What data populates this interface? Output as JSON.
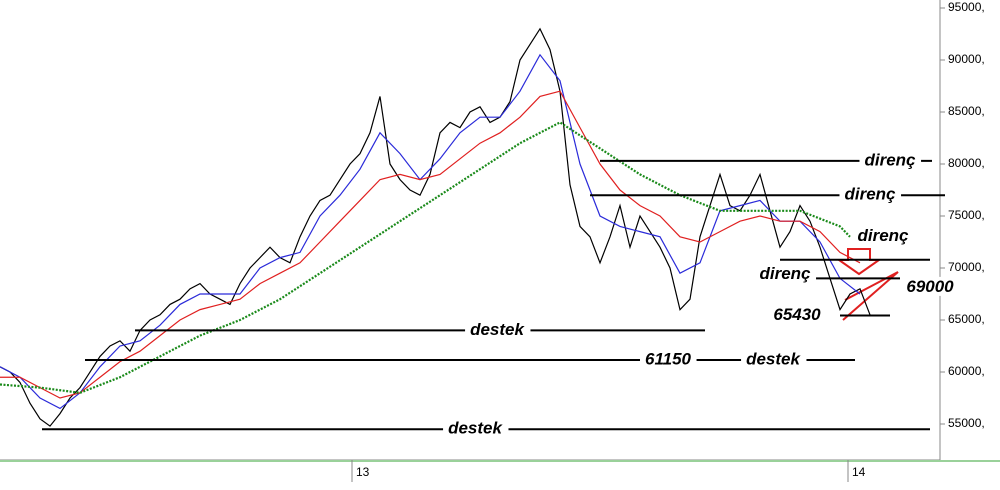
{
  "chart_data": {
    "type": "line",
    "xlim": [
      0,
      94
    ],
    "ylim": [
      51540,
      95770
    ],
    "xticks": [
      {
        "value": 35.2,
        "label": "13"
      },
      {
        "value": 84.8,
        "label": "14"
      }
    ],
    "yticks": [
      {
        "value": 95000,
        "label": "95000,"
      },
      {
        "value": 90000,
        "label": "90000,"
      },
      {
        "value": 85000,
        "label": "85000,"
      },
      {
        "value": 80000,
        "label": "80000,"
      },
      {
        "value": 75000,
        "label": "75000,"
      },
      {
        "value": 70000,
        "label": "70000,"
      },
      {
        "value": 65000,
        "label": "65000,"
      },
      {
        "value": 60000,
        "label": "60000,"
      },
      {
        "value": 55000,
        "label": "55000,"
      }
    ],
    "series": [
      {
        "color": "#000000",
        "dotted": false,
        "x": [
          0,
          1,
          2,
          3,
          4,
          5,
          6,
          7,
          8,
          9,
          10,
          11,
          12,
          13,
          14,
          15,
          16,
          17,
          18,
          19,
          20,
          21,
          22,
          23,
          24,
          25,
          26,
          27,
          28,
          29,
          30,
          31,
          32,
          33,
          34,
          35,
          36,
          37,
          38,
          39,
          40,
          41,
          42,
          43,
          44,
          45,
          46,
          47,
          48,
          49,
          50,
          51,
          52,
          53,
          54,
          55,
          56,
          57,
          58,
          59,
          60,
          61,
          62,
          63,
          64,
          65,
          66,
          67,
          68,
          69,
          70,
          71,
          72,
          73,
          74,
          75,
          76,
          77,
          78,
          79,
          80,
          81,
          82,
          83,
          84,
          85,
          86,
          87
        ],
        "values": [
          60500,
          60000,
          59000,
          57000,
          55500,
          54800,
          56000,
          57500,
          58500,
          60000,
          61500,
          62500,
          63000,
          62000,
          64000,
          65000,
          65500,
          66500,
          67000,
          68000,
          68500,
          67500,
          67000,
          66500,
          68500,
          70000,
          71000,
          72000,
          71000,
          70500,
          73000,
          75000,
          76500,
          77000,
          78500,
          80000,
          81000,
          83000,
          86500,
          80000,
          78500,
          77500,
          77000,
          79000,
          83000,
          84000,
          83500,
          85000,
          85500,
          84000,
          84500,
          86000,
          90000,
          91500,
          93000,
          91000,
          87000,
          78000,
          74000,
          73000,
          70500,
          73000,
          76000,
          72000,
          75000,
          73500,
          72000,
          70000,
          66000,
          67000,
          73000,
          76000,
          79000,
          76000,
          75500,
          77000,
          79000,
          75500,
          72000,
          73500,
          76000,
          74500,
          72000,
          69000,
          66000,
          67500,
          68000,
          65500
        ]
      },
      {
        "color": "#2b2bd9",
        "dotted": false,
        "x": [
          0,
          2,
          4,
          6,
          8,
          10,
          12,
          14,
          16,
          18,
          20,
          22,
          24,
          26,
          28,
          30,
          32,
          34,
          36,
          38,
          40,
          42,
          44,
          46,
          48,
          50,
          52,
          54,
          56,
          58,
          60,
          62,
          64,
          66,
          68,
          70,
          72,
          74,
          76,
          78,
          80,
          82,
          84,
          86
        ],
        "values": [
          60500,
          59500,
          57500,
          56500,
          58000,
          60500,
          62500,
          63000,
          64500,
          66500,
          67500,
          67500,
          67500,
          70000,
          71000,
          71500,
          75000,
          77000,
          79500,
          83000,
          81000,
          78500,
          80500,
          83000,
          84500,
          84500,
          87000,
          90500,
          88000,
          80000,
          75000,
          74000,
          73500,
          73000,
          69500,
          70500,
          75500,
          76000,
          76500,
          74500,
          74500,
          72500,
          69000,
          67500
        ]
      },
      {
        "color": "#e02020",
        "dotted": false,
        "x": [
          0,
          2,
          4,
          6,
          8,
          10,
          12,
          14,
          16,
          18,
          20,
          22,
          24,
          26,
          28,
          30,
          32,
          34,
          36,
          38,
          40,
          42,
          44,
          46,
          48,
          50,
          52,
          54,
          56,
          58,
          60,
          62,
          64,
          66,
          68,
          70,
          72,
          74,
          76,
          78,
          80,
          82,
          84,
          86
        ],
        "values": [
          59500,
          59500,
          58500,
          57500,
          58000,
          59500,
          61000,
          62000,
          63500,
          65000,
          66000,
          66500,
          67000,
          68500,
          69500,
          70500,
          72500,
          74500,
          76500,
          78500,
          79000,
          78500,
          79000,
          80500,
          82000,
          83000,
          84500,
          86500,
          87000,
          83500,
          80000,
          77500,
          76000,
          75000,
          73000,
          72500,
          73500,
          74500,
          75000,
          74500,
          74500,
          73500,
          71500,
          70500
        ]
      },
      {
        "color": "#1a8a1a",
        "dotted": true,
        "x": [
          0,
          4,
          8,
          12,
          16,
          20,
          24,
          28,
          32,
          36,
          40,
          44,
          48,
          52,
          56,
          60,
          64,
          68,
          72,
          76,
          80,
          84,
          85
        ],
        "values": [
          58800,
          58500,
          58000,
          59500,
          61500,
          63500,
          65000,
          67000,
          69500,
          72000,
          74500,
          77000,
          79500,
          82000,
          84000,
          81500,
          79000,
          77000,
          75500,
          75500,
          75500,
          74000,
          73000
        ]
      }
    ],
    "levels": [
      {
        "label": "direnç",
        "value": 80300,
        "x": [
          60,
          93.2
        ]
      },
      {
        "label": "direnç",
        "value": 77000,
        "x": [
          59,
          94.5
        ]
      },
      {
        "label": "direnç",
        "value": 70800,
        "x": [
          78,
          93
        ]
      },
      {
        "label": "direnç",
        "value": 69000,
        "x": [
          81.5,
          90
        ]
      },
      {
        "value": 65430,
        "x": [
          84,
          89
        ]
      },
      {
        "label": "destek",
        "value": 64000,
        "x": [
          13.5,
          70.5
        ]
      },
      {
        "label": "destek",
        "value": 61150,
        "x": [
          8.5,
          85.5
        ]
      },
      {
        "label": "destek",
        "value": 54500,
        "x": [
          4.2,
          93
        ]
      }
    ]
  }
}
